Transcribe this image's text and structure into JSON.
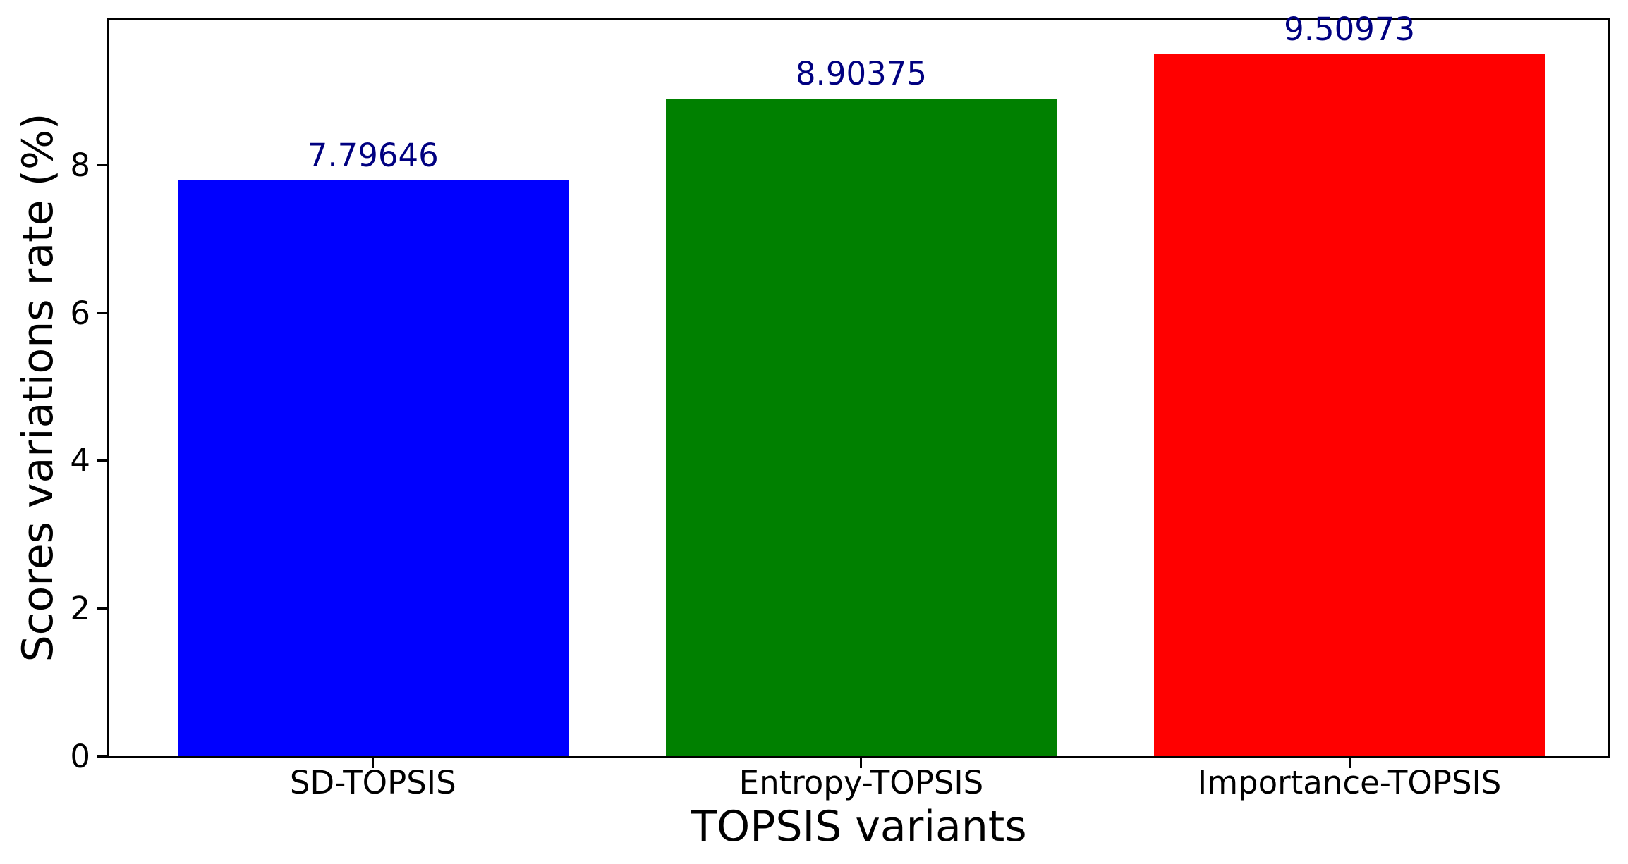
{
  "chart_data": {
    "type": "bar",
    "title": "",
    "xlabel": "TOPSIS variants",
    "ylabel": "Scores variations rate (%)",
    "categories": [
      "SD-TOPSIS",
      "Entropy-TOPSIS",
      "Importance-TOPSIS"
    ],
    "values": [
      7.79646,
      8.90375,
      9.50973
    ],
    "value_labels": [
      "7.79646",
      "8.90375",
      "9.50973"
    ],
    "bar_colors": [
      "#0000ff",
      "#008000",
      "#ff0000"
    ],
    "value_label_color": "#000080",
    "axis_color": "#000000",
    "yticks": [
      0,
      2,
      4,
      6,
      8
    ],
    "ylim": [
      0,
      9.975
    ],
    "xlim": [
      -0.54,
      2.53
    ],
    "bar_width_data_units": 0.8,
    "grid": false,
    "legend": "none"
  }
}
